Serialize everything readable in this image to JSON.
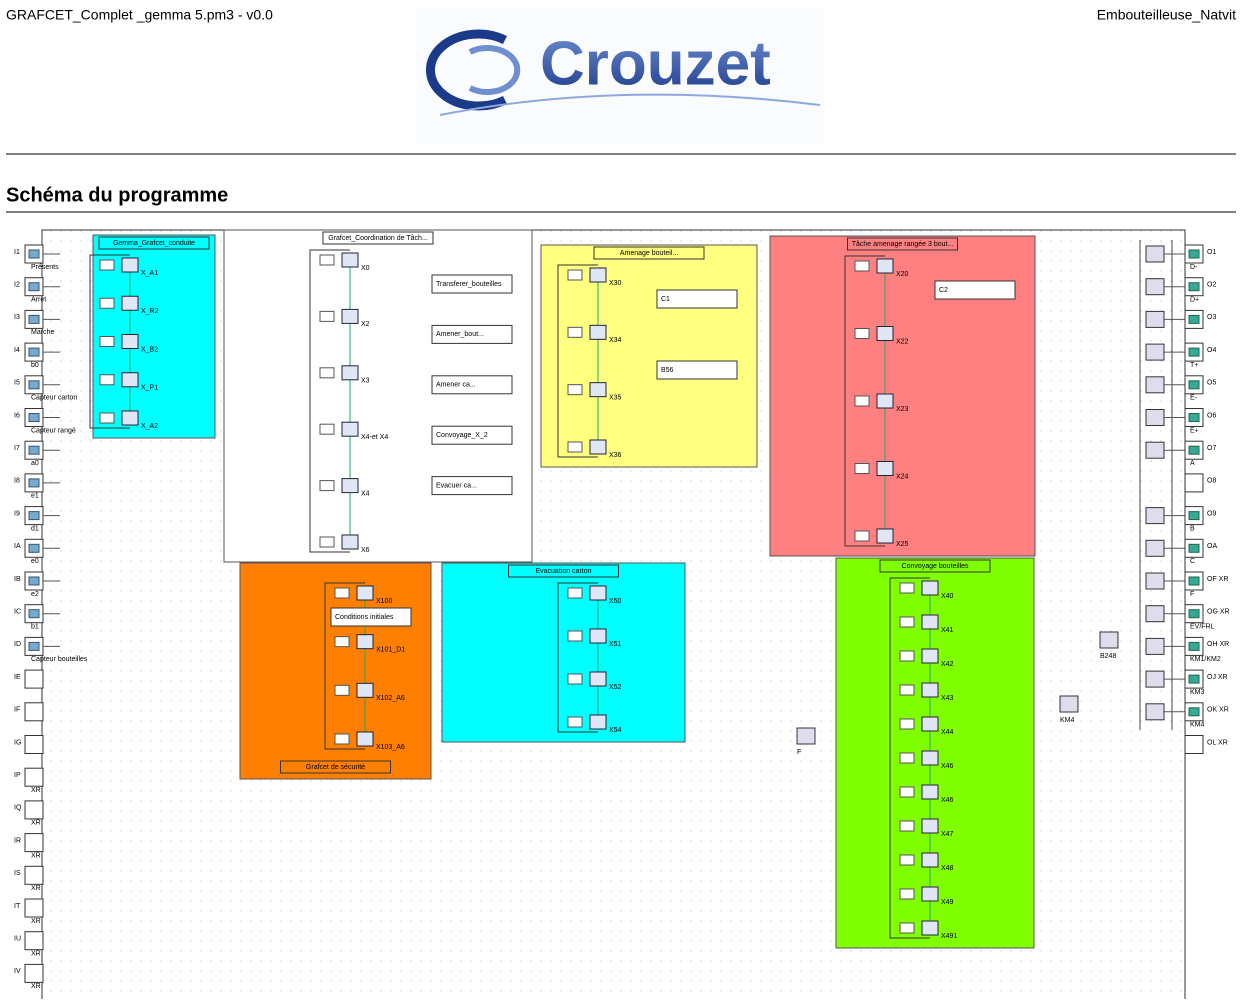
{
  "header": {
    "file": "GRAFCET_Complet _gemma 5.pm3 - v0.0",
    "project": "Embouteilleuse_Natvit",
    "logo": "Crouzet"
  },
  "section_title": "Schéma du programme",
  "inputs": [
    {
      "id": "I1",
      "label": "Présents"
    },
    {
      "id": "I2",
      "label": "Arret"
    },
    {
      "id": "I3",
      "label": "Marche"
    },
    {
      "id": "I4",
      "label": "b0"
    },
    {
      "id": "I5",
      "label": "Capteur carton"
    },
    {
      "id": "I6",
      "label": "Capteur rangé"
    },
    {
      "id": "I7",
      "label": "a0"
    },
    {
      "id": "I8",
      "label": "e1"
    },
    {
      "id": "I9",
      "label": "d1"
    },
    {
      "id": "IA",
      "label": "e0"
    },
    {
      "id": "IB",
      "label": "e2"
    },
    {
      "id": "IC",
      "label": "b1"
    },
    {
      "id": "ID",
      "label": "Capteur bouteilles"
    },
    {
      "id": "IE"
    },
    {
      "id": "IF"
    },
    {
      "id": "IG"
    },
    {
      "id": "IP",
      "label": "XR"
    },
    {
      "id": "IQ",
      "label": "XR"
    },
    {
      "id": "IR",
      "label": "XR"
    },
    {
      "id": "IS",
      "label": "XR"
    },
    {
      "id": "IT",
      "label": "XR"
    },
    {
      "id": "IU",
      "label": "XR"
    },
    {
      "id": "IV",
      "label": "XR"
    }
  ],
  "outputs": [
    {
      "id": "O1",
      "label": "D-"
    },
    {
      "id": "O2",
      "label": "D+"
    },
    {
      "id": "O3"
    },
    {
      "id": "O4",
      "label": "T+"
    },
    {
      "id": "O5",
      "label": "E-"
    },
    {
      "id": "O6",
      "label": "E+"
    },
    {
      "id": "O7",
      "label": "A"
    },
    {
      "id": "O8"
    },
    {
      "id": "O9",
      "label": "B"
    },
    {
      "id": "OA",
      "label": "C"
    },
    {
      "id": "OF XR",
      "label": "F"
    },
    {
      "id": "OG XR",
      "label": "EV/FRL"
    },
    {
      "id": "OH XR",
      "label": "KM1/KM2"
    },
    {
      "id": "OJ XR",
      "label": "KM3"
    },
    {
      "id": "OK XR",
      "label": "KM4"
    },
    {
      "id": "OL XR"
    }
  ],
  "groups": [
    {
      "title": "Gemma_Grafcet_conduite",
      "color": "#00ffff",
      "steps": [
        "X_A1",
        "X_R2",
        "X_B2",
        "X_P1",
        "X_A2"
      ]
    },
    {
      "title": "Grafcet_Coordination de Tâch...",
      "color": "#ffffff",
      "steps": [
        "X0",
        "X2",
        "X3",
        "X4-et X4",
        "X4",
        "X6"
      ],
      "macros": [
        "Transferer_bouteilles",
        "Amener_bout...",
        "Amener ca...",
        "Convoyage_X_2",
        "Evacuer ca..."
      ]
    },
    {
      "title": "Amenage bouteil...",
      "color": "#ffff80",
      "steps": [
        "X30",
        "X34",
        "X35",
        "X36"
      ],
      "macros": [
        "C1",
        "B56"
      ]
    },
    {
      "title": "Tâche amenage rangée 3 bout...",
      "color": "#ff8080",
      "steps": [
        "X20",
        "X22",
        "X23",
        "X24",
        "X25"
      ],
      "macros": [
        "C2"
      ]
    },
    {
      "title": "Grafcet de sécurité",
      "color": "#ff8000",
      "steps": [
        "X100",
        "X101_D1",
        "X102_A6",
        "X103_A6"
      ],
      "macros": [
        "Conditions initiales"
      ]
    },
    {
      "title": "Evacuation carton",
      "color": "#00ffff",
      "steps": [
        "X50",
        "X51",
        "X52",
        "X54"
      ]
    },
    {
      "title": "Convoyage bouteilles",
      "color": "#80ff00",
      "steps": [
        "X40",
        "X41",
        "X42",
        "X43",
        "X44",
        "X46",
        "X46",
        "X47",
        "X48",
        "X49",
        "X491"
      ]
    }
  ],
  "labels": [
    "B248",
    "KM4",
    "F"
  ]
}
